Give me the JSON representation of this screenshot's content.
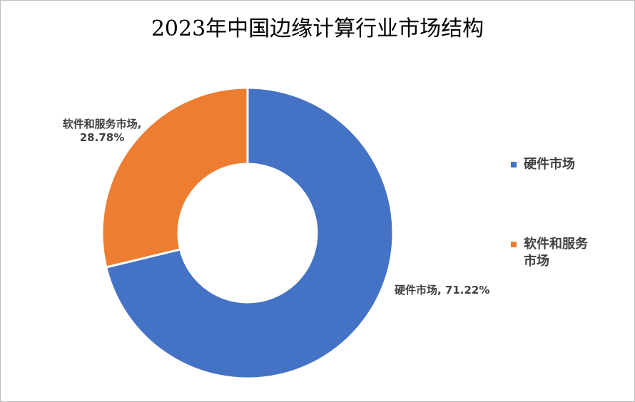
{
  "chart_data": {
    "type": "pie",
    "title": "2023年中国边缘计算行业市场结构",
    "donut": true,
    "legend_position": "right",
    "slices": [
      {
        "name": "硬件市场",
        "value": 71.22,
        "label_text": "硬件市场, 71.22%",
        "color": "#4472C4"
      },
      {
        "name": "软件和服务市场",
        "value": 28.78,
        "label_text_line1": "软件和服务市场,",
        "label_text_line2": "28.78%",
        "color": "#ED7D31"
      }
    ]
  }
}
